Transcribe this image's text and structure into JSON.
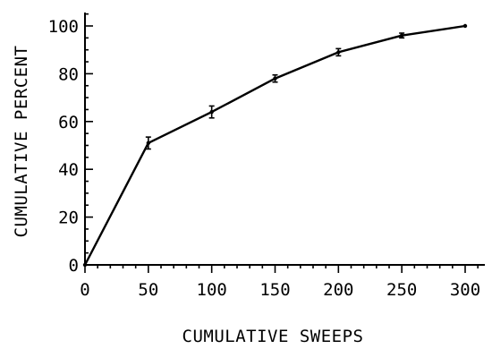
{
  "chart_data": {
    "type": "line",
    "xlabel": "CUMULATIVE SWEEPS",
    "ylabel": "CUMULATIVE PERCENT",
    "xlim": [
      0,
      310
    ],
    "ylim": [
      0,
      105
    ],
    "x_ticks": [
      0,
      50,
      100,
      150,
      200,
      250,
      300
    ],
    "y_ticks": [
      0,
      20,
      40,
      60,
      80,
      100
    ],
    "x_minor_step": 10,
    "y_minor_step": 5,
    "grid": false,
    "series": [
      {
        "x": [
          0,
          50,
          100,
          150,
          200,
          250,
          300
        ],
        "y": [
          0,
          51,
          64,
          78,
          89,
          96,
          100
        ],
        "error": [
          0,
          2.5,
          2.5,
          1.5,
          1.5,
          1,
          0
        ]
      }
    ]
  }
}
